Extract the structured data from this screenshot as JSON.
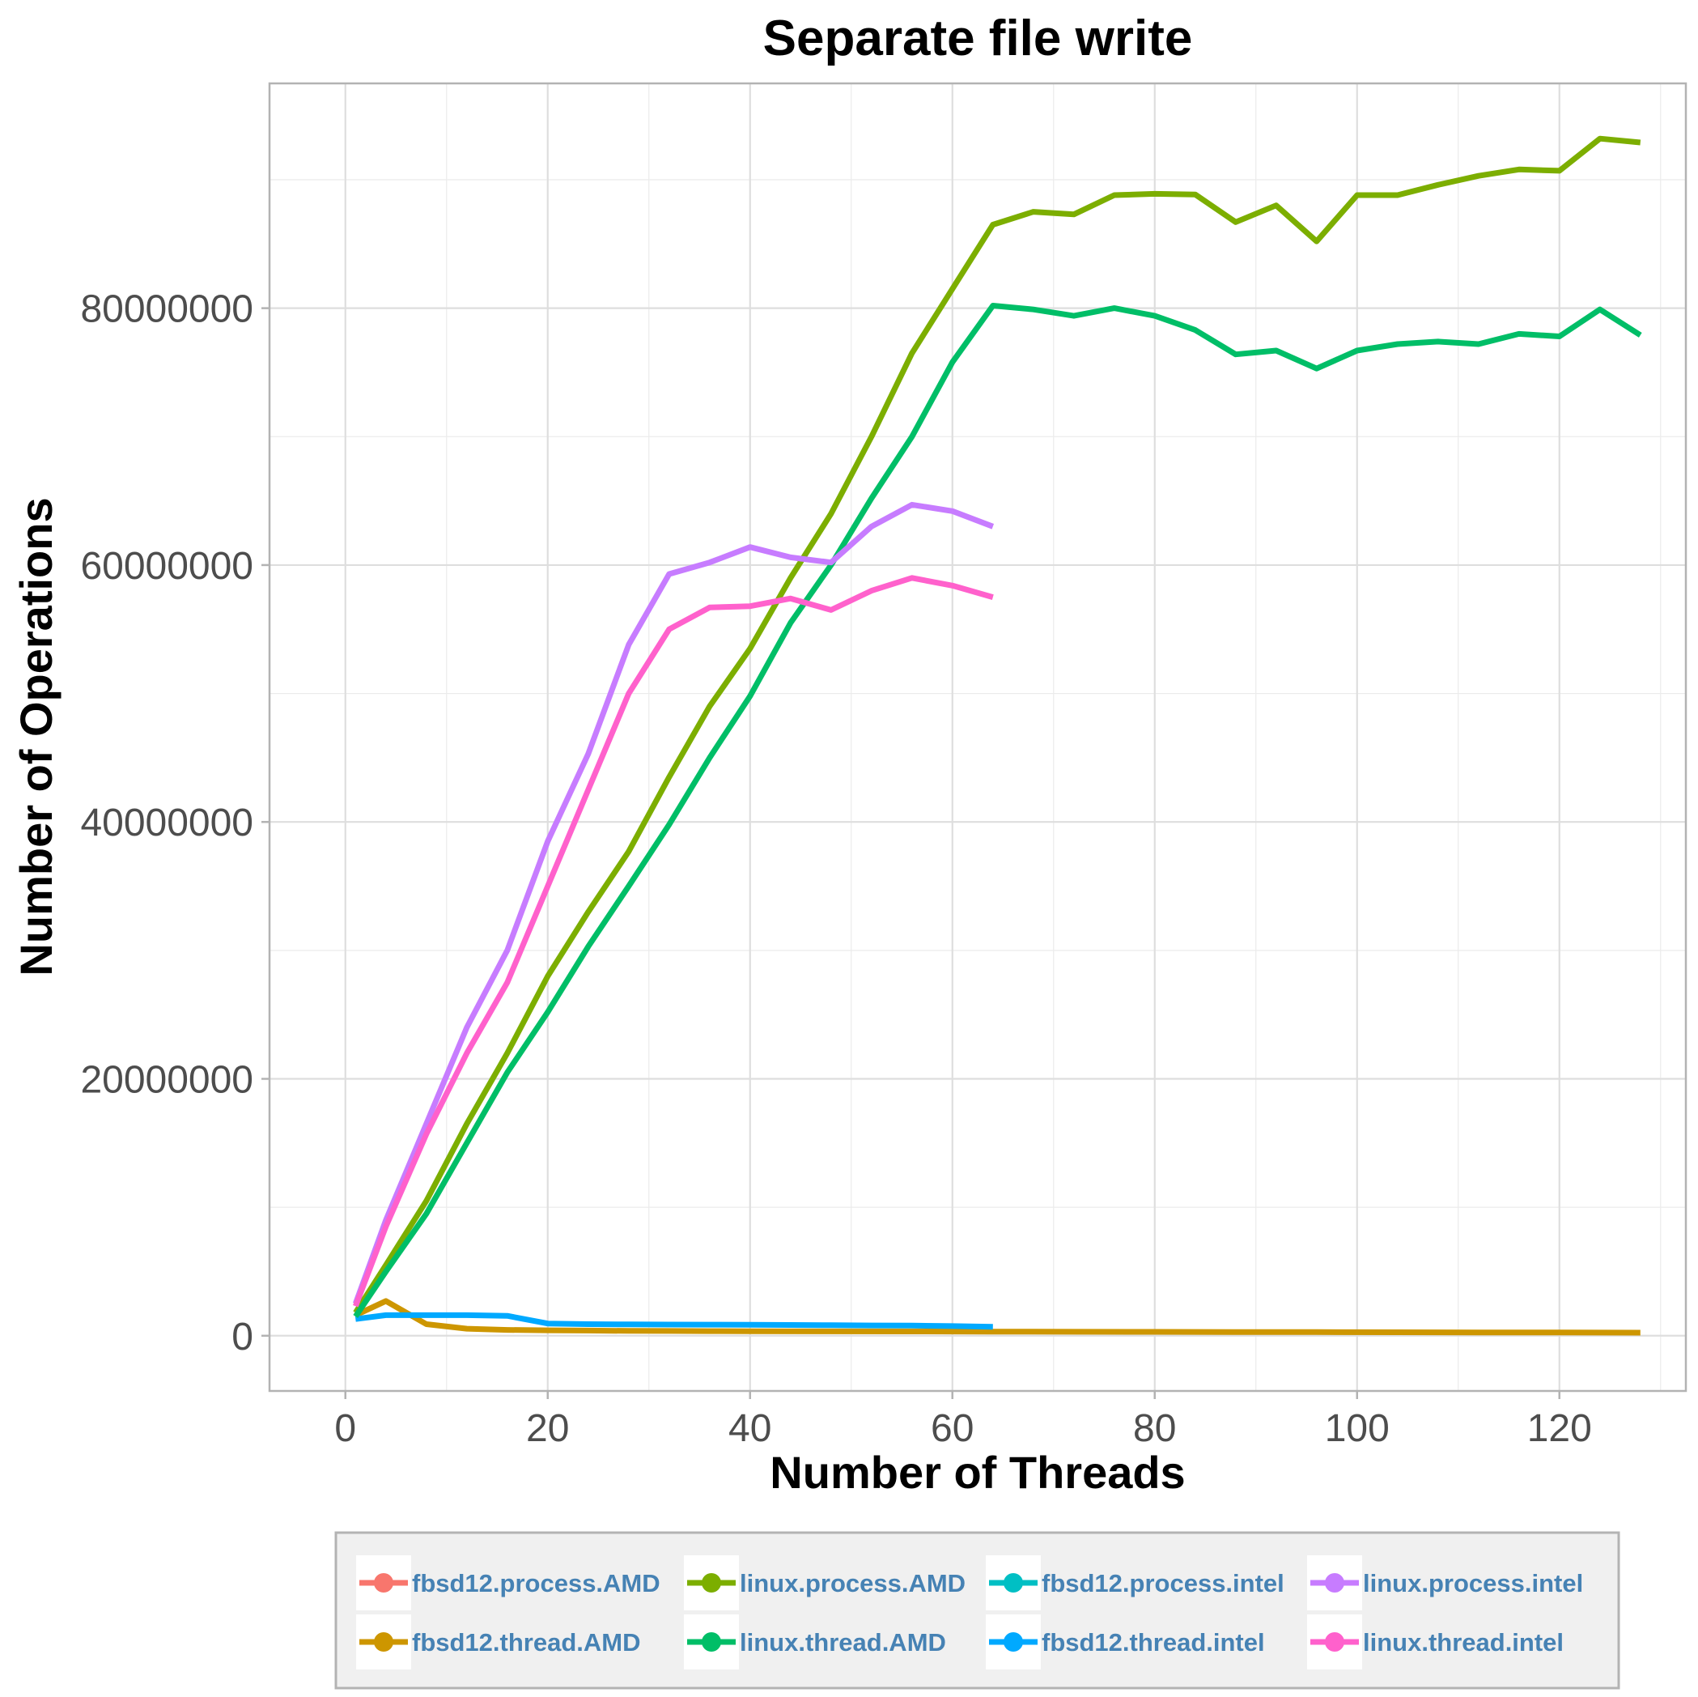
{
  "chart_data": {
    "type": "line",
    "title": "Separate file write",
    "xlabel": "Number of Threads",
    "ylabel": "Number of Operations",
    "xlim": [
      -7.5,
      132.5
    ],
    "ylim": [
      -4300000,
      97500000
    ],
    "x_ticks": [
      0,
      20,
      40,
      60,
      80,
      100,
      120
    ],
    "x_tick_labels": [
      "0",
      "20",
      "40",
      "60",
      "80",
      "100",
      "120"
    ],
    "y_ticks": [
      0,
      20000000,
      40000000,
      60000000,
      80000000
    ],
    "y_tick_labels": [
      "0",
      "20000000",
      "40000000",
      "60000000",
      "80000000"
    ],
    "grid": true,
    "legend_position": "bottom",
    "series": [
      {
        "name": "fbsd12.process.AMD",
        "color": "#F8766D",
        "x": [],
        "y": []
      },
      {
        "name": "fbsd12.thread.AMD",
        "color": "#CD9600",
        "x": [
          1,
          4,
          8,
          12,
          16,
          20,
          24,
          28,
          32,
          36,
          40,
          48,
          56,
          64,
          72,
          80,
          88,
          96,
          104,
          112,
          120,
          128
        ],
        "y": [
          1600000,
          2700000,
          900000,
          550000,
          450000,
          420000,
          400000,
          380000,
          370000,
          360000,
          350000,
          340000,
          330000,
          320000,
          310000,
          300000,
          290000,
          280000,
          270000,
          260000,
          250000,
          240000
        ]
      },
      {
        "name": "fbsd12.process.intel",
        "color": "#00BFC4",
        "x": [],
        "y": []
      },
      {
        "name": "fbsd12.thread.intel",
        "color": "#00A9FF",
        "x": [
          1,
          4,
          8,
          12,
          16,
          20,
          24,
          28,
          32,
          36,
          40,
          44,
          48,
          52,
          56,
          60,
          64
        ],
        "y": [
          1300000,
          1600000,
          1600000,
          1600000,
          1550000,
          950000,
          900000,
          880000,
          870000,
          860000,
          850000,
          840000,
          820000,
          800000,
          790000,
          750000,
          700000
        ]
      },
      {
        "name": "linux.process.AMD",
        "color": "#7CAE00",
        "x": [
          1,
          4,
          8,
          12,
          16,
          20,
          24,
          28,
          32,
          36,
          40,
          44,
          48,
          52,
          56,
          60,
          64,
          68,
          72,
          76,
          80,
          84,
          88,
          92,
          96,
          100,
          104,
          108,
          112,
          116,
          120,
          124,
          128
        ],
        "y": [
          1800000,
          5500000,
          10500000,
          16500000,
          22000000,
          28000000,
          33000000,
          37700000,
          43500000,
          49000000,
          53500000,
          59000000,
          64000000,
          70000000,
          76500000,
          81500000,
          86500000,
          87500000,
          87300000,
          88800000,
          88900000,
          88850000,
          86700000,
          88000000,
          85200000,
          88800000,
          88800000,
          89600000,
          90300000,
          90800000,
          90700000,
          93200000,
          92900000
        ]
      },
      {
        "name": "linux.thread.AMD",
        "color": "#00BE67",
        "x": [
          1,
          4,
          8,
          12,
          16,
          20,
          24,
          28,
          32,
          36,
          40,
          44,
          48,
          52,
          56,
          60,
          64,
          68,
          72,
          76,
          80,
          84,
          88,
          92,
          96,
          100,
          104,
          108,
          112,
          116,
          120,
          124,
          128
        ],
        "y": [
          1500000,
          5000000,
          9500000,
          15000000,
          20500000,
          25200000,
          30300000,
          35000000,
          39800000,
          45000000,
          49800000,
          55500000,
          60000000,
          65200000,
          70000000,
          75800000,
          80200000,
          79900000,
          79400000,
          80000000,
          79400000,
          78300000,
          76400000,
          76700000,
          75300000,
          76700000,
          77200000,
          77400000,
          77200000,
          78000000,
          77800000,
          79900000,
          77900000
        ]
      },
      {
        "name": "linux.process.intel",
        "color": "#C77CFF",
        "x": [
          1,
          4,
          8,
          12,
          16,
          20,
          24,
          28,
          32,
          36,
          40,
          44,
          48,
          52,
          56,
          60,
          64
        ],
        "y": [
          2500000,
          9000000,
          16500000,
          24000000,
          30000000,
          38500000,
          45300000,
          53800000,
          59300000,
          60200000,
          61400000,
          60600000,
          60200000,
          63000000,
          64700000,
          64200000,
          63000000
        ]
      },
      {
        "name": "linux.thread.intel",
        "color": "#FF61CC",
        "x": [
          1,
          4,
          8,
          12,
          16,
          20,
          24,
          28,
          32,
          36,
          40,
          44,
          48,
          52,
          56,
          60,
          64
        ],
        "y": [
          2300000,
          8500000,
          15700000,
          22000000,
          27500000,
          35000000,
          42500000,
          50000000,
          55000000,
          56700000,
          56800000,
          57400000,
          56500000,
          58000000,
          59000000,
          58400000,
          57500000
        ]
      }
    ],
    "legend_order": [
      "fbsd12.process.AMD",
      "linux.process.AMD",
      "fbsd12.process.intel",
      "linux.process.intel",
      "fbsd12.thread.AMD",
      "linux.thread.AMD",
      "fbsd12.thread.intel",
      "linux.thread.intel"
    ]
  }
}
